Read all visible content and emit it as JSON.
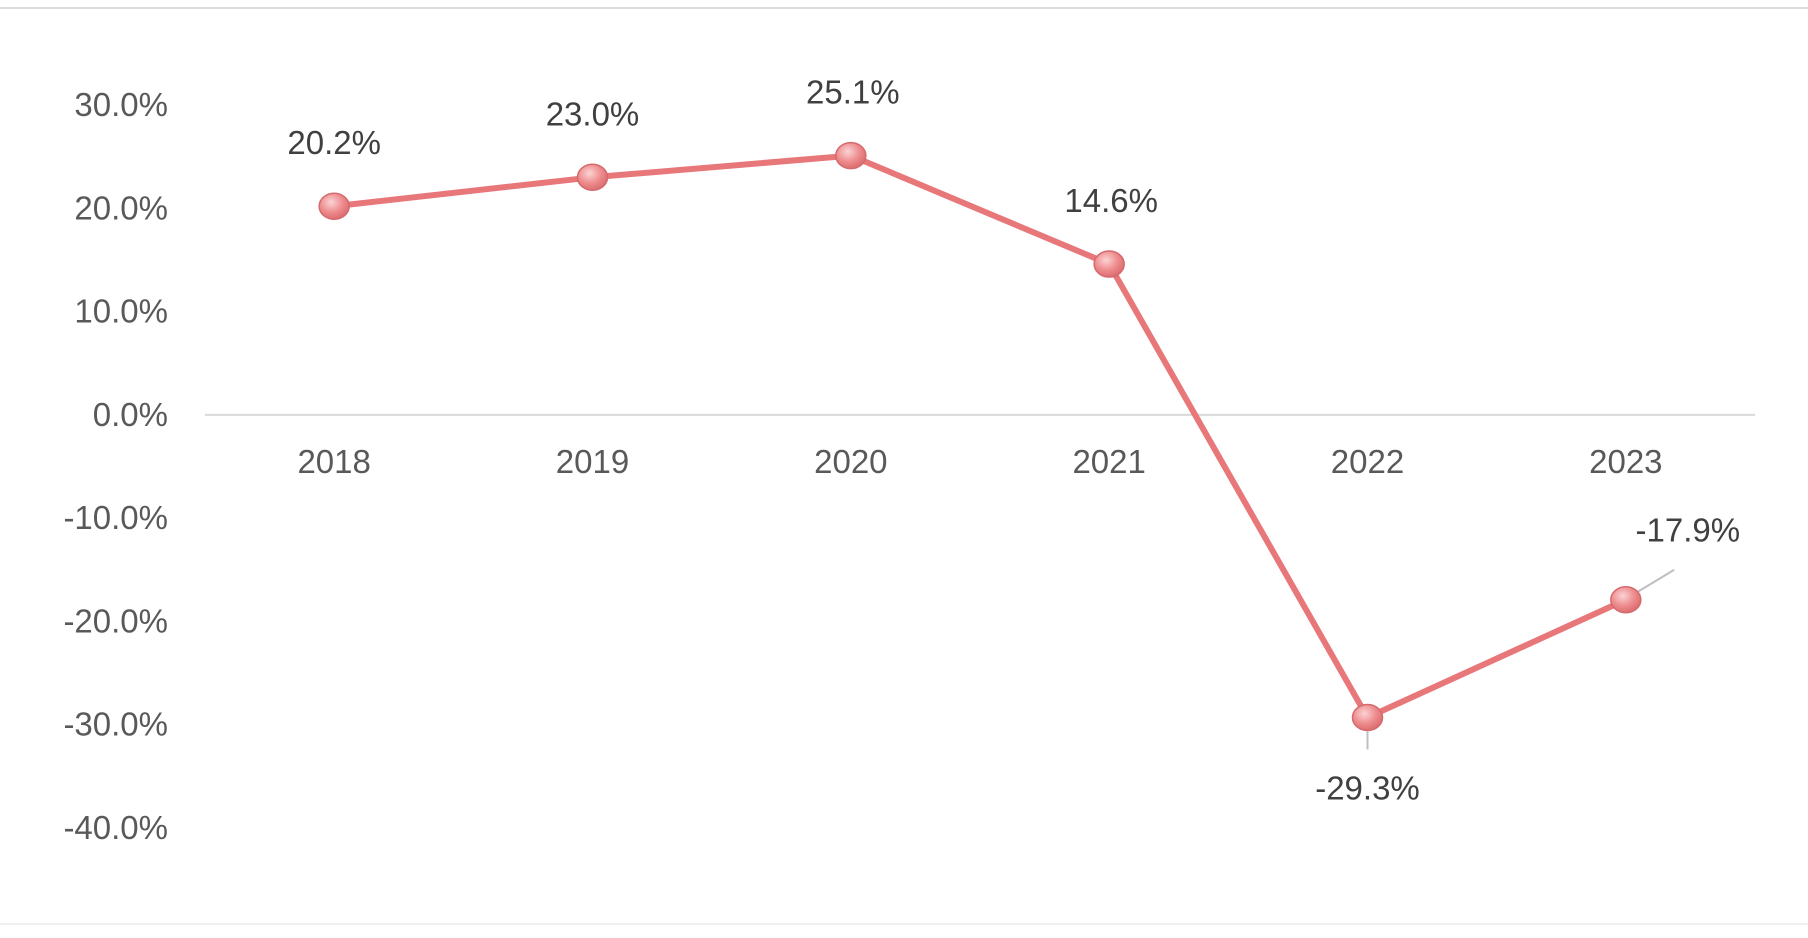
{
  "chart_data": {
    "type": "line",
    "title": "",
    "xlabel": "",
    "ylabel": "",
    "categories": [
      "2018",
      "2019",
      "2020",
      "2021",
      "2022",
      "2023"
    ],
    "series": [
      {
        "values": [
          20.2,
          23.0,
          25.1,
          14.6,
          -29.3,
          -17.9
        ],
        "labels": [
          "20.2%",
          "23.0%",
          "25.1%",
          "14.6%",
          "-29.3%",
          "-17.9%"
        ],
        "color": "#e8777a"
      }
    ],
    "ylim": [
      -40,
      30
    ],
    "yticks": [
      30,
      20,
      10,
      0,
      -10,
      -20,
      -30,
      -40
    ],
    "ytick_labels": [
      "30.0%",
      "20.0%",
      "10.0%",
      "0.0%",
      "-10.0%",
      "-20.0%",
      "-30.0%",
      "-40.0%"
    ],
    "grid": false,
    "legend": "none"
  }
}
